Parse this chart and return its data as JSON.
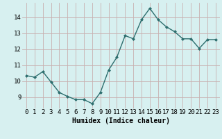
{
  "x": [
    0,
    1,
    2,
    3,
    4,
    5,
    6,
    7,
    8,
    9,
    10,
    11,
    12,
    13,
    14,
    15,
    16,
    17,
    18,
    19,
    20,
    21,
    22,
    23
  ],
  "y": [
    10.35,
    10.25,
    10.6,
    9.95,
    9.3,
    9.05,
    8.85,
    8.85,
    8.6,
    9.3,
    10.7,
    11.5,
    12.85,
    12.65,
    13.85,
    14.55,
    13.85,
    13.4,
    13.1,
    12.65,
    12.65,
    12.05,
    12.6,
    12.6
  ],
  "line_color": "#2d6e6e",
  "marker": "D",
  "marker_size": 2.0,
  "bg_color": "#d7f0f0",
  "grid_color": "#c8b0b0",
  "xlabel": "Humidex (Indice chaleur)",
  "xlim": [
    -0.5,
    23.5
  ],
  "ylim": [
    8.3,
    14.9
  ],
  "yticks": [
    9,
    10,
    11,
    12,
    13,
    14
  ],
  "xticks": [
    0,
    1,
    2,
    3,
    4,
    5,
    6,
    7,
    8,
    9,
    10,
    11,
    12,
    13,
    14,
    15,
    16,
    17,
    18,
    19,
    20,
    21,
    22,
    23
  ],
  "xlabel_fontsize": 7.0,
  "tick_fontsize": 6.5,
  "line_width": 1.0
}
